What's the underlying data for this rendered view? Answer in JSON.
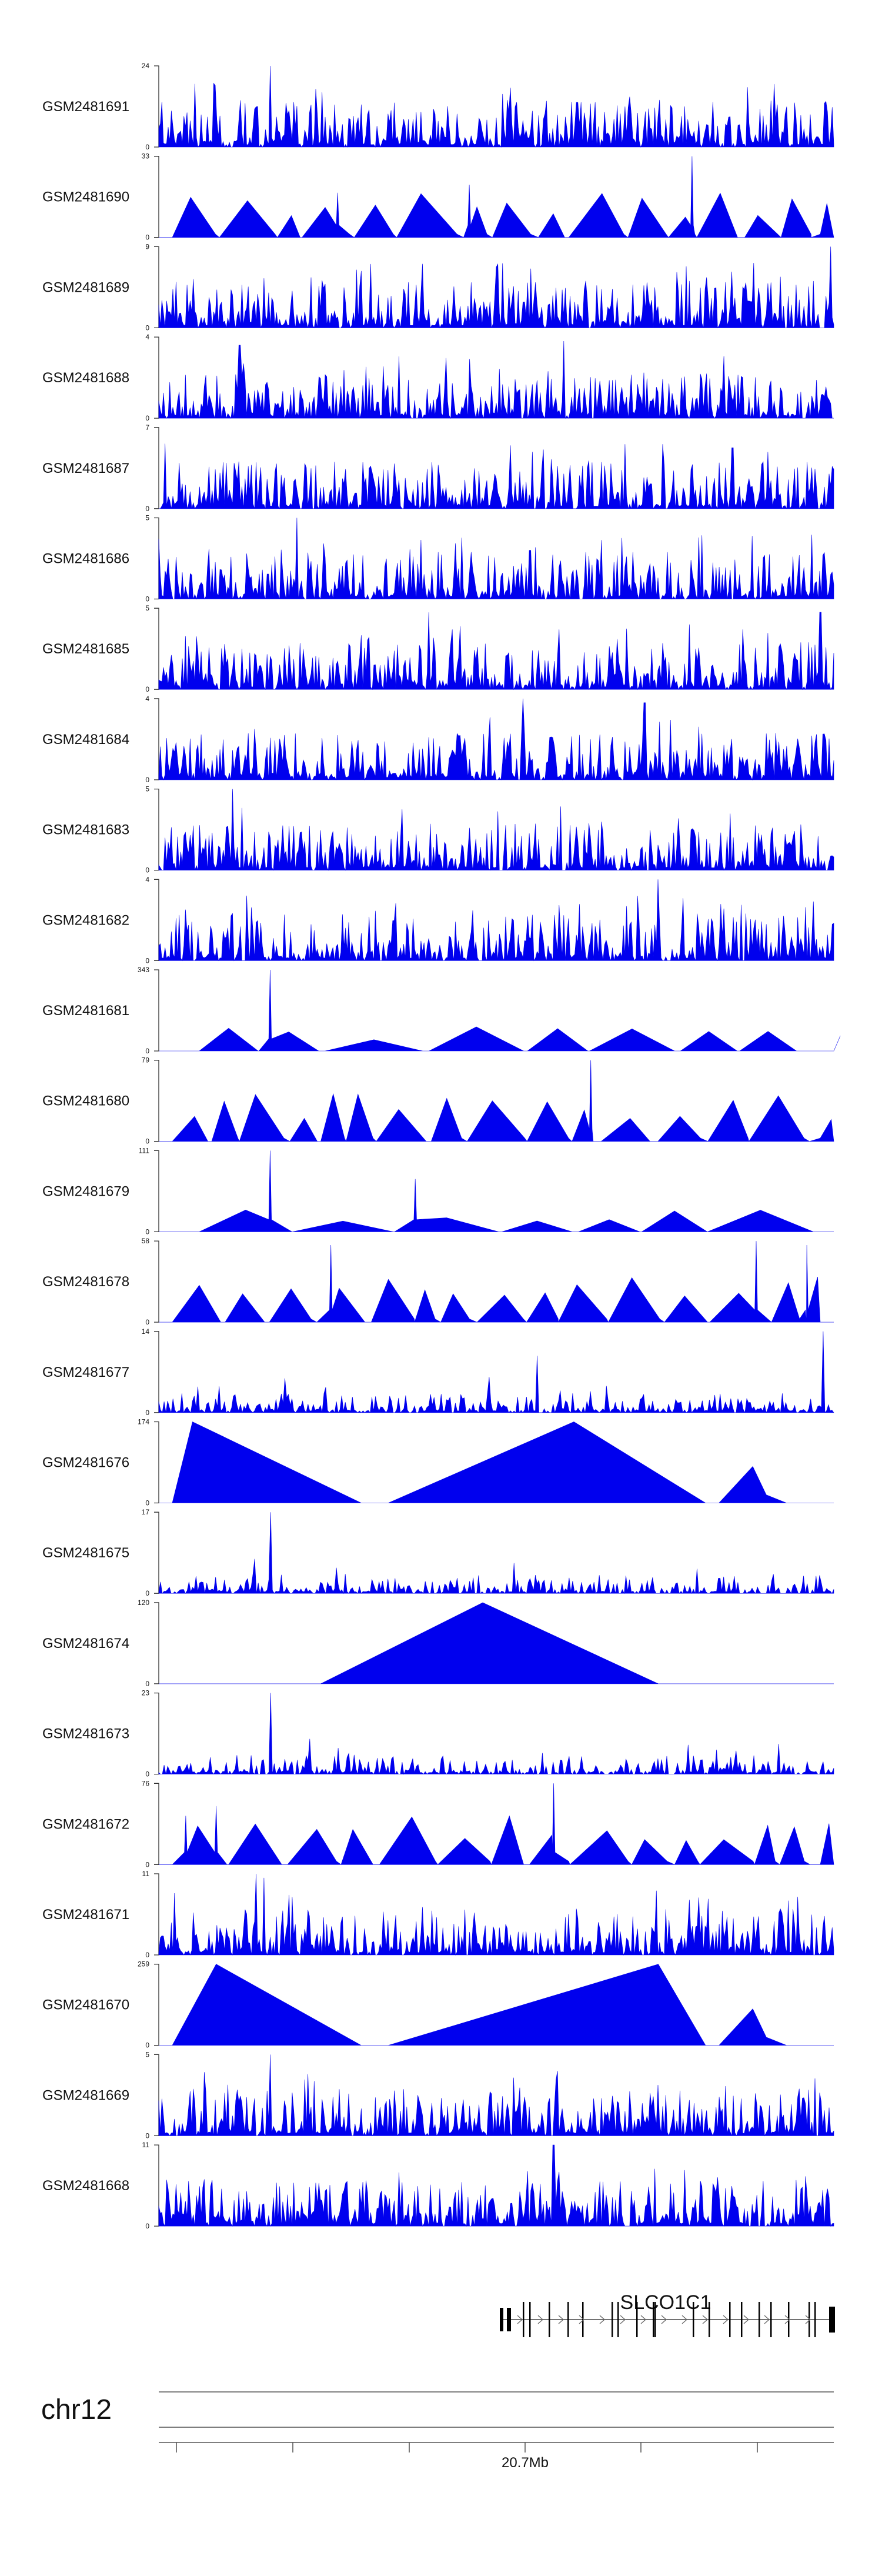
{
  "chart_data": {
    "type": "area",
    "chromosome": "chr12",
    "gene": "SLCO1C1",
    "coordinate_label": "20.7Mb",
    "signal_color": "#0000ee",
    "tracks": [
      {
        "name": "GSM2481691",
        "ymax": "24",
        "ymin": "0",
        "style": "dense",
        "peaks": [
          [
            0.165,
            1.0
          ],
          [
            0.62,
            0.55
          ],
          [
            0.71,
            0.42
          ]
        ]
      },
      {
        "name": "GSM2481690",
        "ymax": "33",
        "ymin": "0",
        "style": "triangles",
        "peaks": [
          [
            0.79,
            1.0
          ],
          [
            0.46,
            0.65
          ],
          [
            0.265,
            0.55
          ]
        ]
      },
      {
        "name": "GSM2481689",
        "ymax": "9",
        "ymin": "0",
        "style": "dense",
        "peaks": [
          [
            0.995,
            1.0
          ],
          [
            0.5,
            0.75
          ],
          [
            0.3,
            0.7
          ]
        ]
      },
      {
        "name": "GSM2481688",
        "ymax": "4",
        "ymin": "0",
        "style": "dense",
        "peaks": [
          [
            0.12,
            0.9
          ],
          [
            0.6,
            0.95
          ]
        ]
      },
      {
        "name": "GSM2481687",
        "ymax": "7",
        "ymin": "0",
        "style": "dense",
        "peaks": [
          [
            0.01,
            0.8
          ],
          [
            0.85,
            0.75
          ]
        ]
      },
      {
        "name": "GSM2481686",
        "ymax": "5",
        "ymin": "0",
        "style": "dense",
        "peaks": [
          [
            0.205,
            1.0
          ],
          [
            0.55,
            0.6
          ]
        ]
      },
      {
        "name": "GSM2481685",
        "ymax": "5",
        "ymin": "0",
        "style": "dense",
        "peaks": [
          [
            0.4,
            0.95
          ],
          [
            0.98,
            0.95
          ]
        ]
      },
      {
        "name": "GSM2481684",
        "ymax": "4",
        "ymin": "0",
        "style": "dense",
        "peaks": [
          [
            0.54,
            1.0
          ],
          [
            0.72,
            0.95
          ]
        ]
      },
      {
        "name": "GSM2481683",
        "ymax": "5",
        "ymin": "0",
        "style": "dense",
        "peaks": [
          [
            0.11,
            1.0
          ],
          [
            0.36,
            0.75
          ]
        ]
      },
      {
        "name": "GSM2481682",
        "ymax": "4",
        "ymin": "0",
        "style": "dense",
        "peaks": [
          [
            0.74,
            1.0
          ],
          [
            0.13,
            0.8
          ]
        ]
      },
      {
        "name": "GSM2481681",
        "ymax": "343",
        "ymin": "0",
        "style": "triangles_sparse",
        "peaks": [
          [
            0.165,
            1.0
          ]
        ]
      },
      {
        "name": "GSM2481680",
        "ymax": "79",
        "ymin": "0",
        "style": "triangles",
        "peaks": [
          [
            0.64,
            1.0
          ]
        ]
      },
      {
        "name": "GSM2481679",
        "ymax": "111",
        "ymin": "0",
        "style": "triangles_sparse",
        "peaks": [
          [
            0.165,
            1.0
          ],
          [
            0.38,
            0.65
          ]
        ]
      },
      {
        "name": "GSM2481678",
        "ymax": "58",
        "ymin": "0",
        "style": "triangles",
        "peaks": [
          [
            0.885,
            1.0
          ],
          [
            0.96,
            0.95
          ],
          [
            0.255,
            0.95
          ]
        ]
      },
      {
        "name": "GSM2481677",
        "ymax": "14",
        "ymin": "0",
        "style": "sparse",
        "peaks": [
          [
            0.985,
            1.0
          ],
          [
            0.56,
            0.7
          ]
        ]
      },
      {
        "name": "GSM2481676",
        "ymax": "174",
        "ymin": "0",
        "style": "big_triangles",
        "peaks": [
          [
            0.05,
            1.0
          ],
          [
            0.615,
            1.0
          ]
        ]
      },
      {
        "name": "GSM2481675",
        "ymax": "17",
        "ymin": "0",
        "style": "sparse",
        "peaks": [
          [
            0.165,
            1.0
          ]
        ]
      },
      {
        "name": "GSM2481674",
        "ymax": "120",
        "ymin": "0",
        "style": "single_triangle",
        "peaks": [
          [
            0.48,
            1.0
          ]
        ]
      },
      {
        "name": "GSM2481673",
        "ymax": "23",
        "ymin": "0",
        "style": "sparse",
        "peaks": [
          [
            0.165,
            1.0
          ]
        ]
      },
      {
        "name": "GSM2481672",
        "ymax": "76",
        "ymin": "0",
        "style": "triangles",
        "peaks": [
          [
            0.585,
            1.0
          ],
          [
            0.04,
            0.6
          ],
          [
            0.085,
            0.72
          ]
        ]
      },
      {
        "name": "GSM2481671",
        "ymax": "11",
        "ymin": "0",
        "style": "dense",
        "peaks": [
          [
            0.145,
            1.0
          ],
          [
            0.155,
            0.95
          ]
        ]
      },
      {
        "name": "GSM2481670",
        "ymax": "259",
        "ymin": "0",
        "style": "big_triangles",
        "peaks": [
          [
            0.085,
            1.0
          ],
          [
            0.74,
            1.0
          ]
        ]
      },
      {
        "name": "GSM2481669",
        "ymax": "5",
        "ymin": "0",
        "style": "dense",
        "peaks": [
          [
            0.165,
            1.0
          ]
        ]
      },
      {
        "name": "GSM2481668",
        "ymax": "11",
        "ymin": "0",
        "style": "dense",
        "peaks": [
          [
            0.585,
            1.0
          ]
        ]
      }
    ]
  }
}
